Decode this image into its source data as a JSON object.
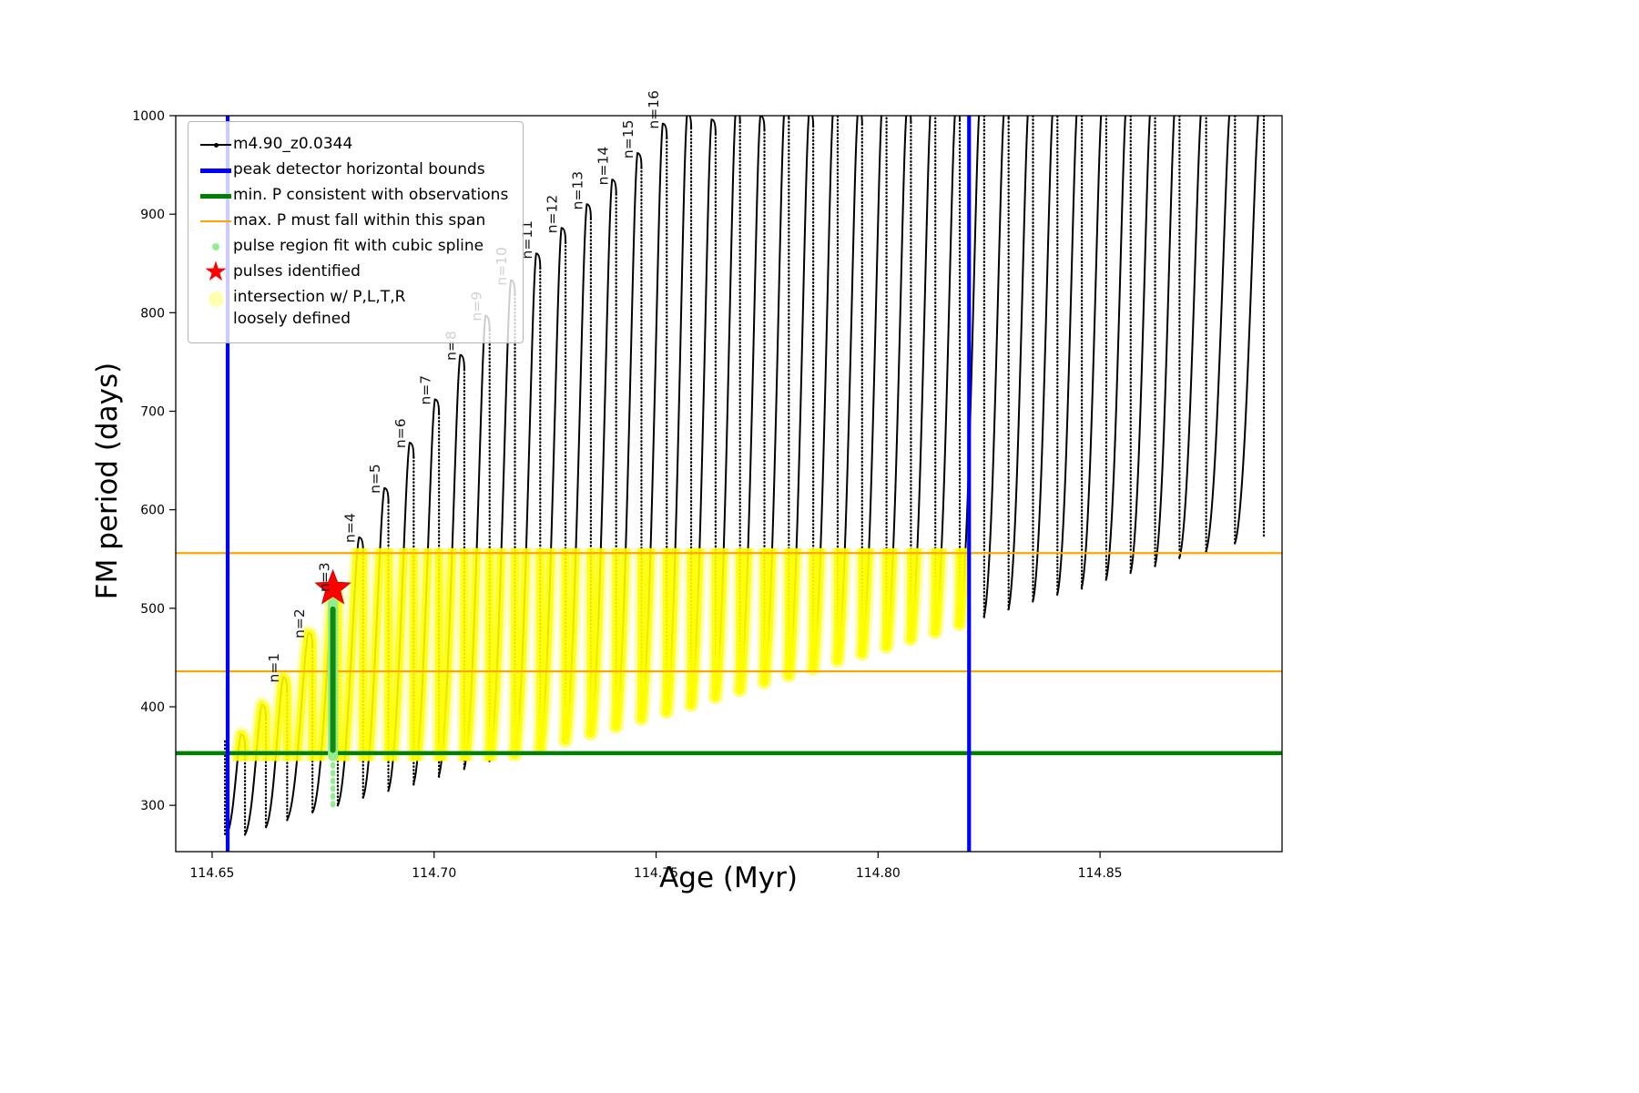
{
  "axes": {
    "xlabel": "Age (Myr)",
    "ylabel": "FM period (days)"
  },
  "icons": {
    "star_glyph": "★"
  },
  "legend": {
    "location": "upper left",
    "entries": [
      {
        "swatch": "line-dot",
        "color": "#000000",
        "label": "m4.90_z0.0344"
      },
      {
        "swatch": "thick-line",
        "color": "#0000ff",
        "label": "peak detector horizontal bounds"
      },
      {
        "swatch": "thick-line",
        "color": "#008000",
        "label": "min. P consistent with observations"
      },
      {
        "swatch": "thin-line",
        "color": "#ffa500",
        "label": "max. P must fall within this span"
      },
      {
        "swatch": "small-dot",
        "color": "#90ee90",
        "label": "pulse region fit with cubic spline"
      },
      {
        "swatch": "star",
        "color": "#ff0000",
        "label": "pulses identified"
      },
      {
        "swatch": "big-dot",
        "color": "#ffffb0",
        "label": "intersection w/ P,L,T,R\nloosely defined"
      }
    ]
  },
  "chart_data": {
    "type": "line",
    "title": "",
    "xlabel": "Age (Myr)",
    "ylabel": "FM period (days)",
    "xlim": [
      114.6418,
      114.891
    ],
    "ylim": [
      253,
      1000
    ],
    "xticks": [
      114.65,
      114.7,
      114.75,
      114.8,
      114.85
    ],
    "xtick_labels": [
      "114.65",
      "114.70",
      "114.75",
      "114.80",
      "114.85"
    ],
    "yticks": [
      300,
      400,
      500,
      600,
      700,
      800,
      900,
      1000
    ],
    "grid": false,
    "legend_location": "upper left",
    "series": [
      {
        "name": "m4.90_z0.0344",
        "color": "#000000",
        "marker": "dot"
      }
    ],
    "peak_detector_bounds_x": [
      114.6535,
      114.8205
    ],
    "min_P_line_y": 353,
    "max_P_span_y": [
      436,
      556
    ],
    "yellow_band": {
      "period_range": [
        345,
        561
      ],
      "age_range": [
        114.6535,
        114.8205
      ]
    },
    "spline_region": {
      "age": 114.6772,
      "sparse_range": [
        300,
        348
      ],
      "dense_range": [
        350,
        505
      ]
    },
    "pulse_identified": {
      "age": 114.6772,
      "period": 520
    },
    "initial_drop": {
      "age": 114.6529,
      "from": 365,
      "to": 270
    },
    "first_ascent_start_age": 114.6532,
    "pulses": [
      [
        114.6565,
        372
      ],
      [
        114.6612,
        402
      ],
      [
        114.666,
        430
      ],
      [
        114.6717,
        475
      ],
      [
        114.6774,
        522
      ],
      [
        114.6831,
        572
      ],
      [
        114.6888,
        622
      ],
      [
        114.6945,
        668
      ],
      [
        114.7002,
        712
      ],
      [
        114.7059,
        757
      ],
      [
        114.7116,
        797
      ],
      [
        114.7173,
        833
      ],
      [
        114.723,
        860
      ],
      [
        114.7287,
        886
      ],
      [
        114.7344,
        910
      ],
      [
        114.7401,
        935
      ],
      [
        114.7458,
        962
      ],
      [
        114.7515,
        992
      ],
      [
        114.757,
        1002
      ],
      [
        114.7625,
        996
      ],
      [
        114.768,
        1008
      ],
      [
        114.7735,
        1000
      ],
      [
        114.779,
        1012
      ],
      [
        114.7845,
        1004
      ],
      [
        114.79,
        1014
      ],
      [
        114.7955,
        1006
      ],
      [
        114.801,
        1016
      ],
      [
        114.8065,
        1008
      ],
      [
        114.812,
        1016
      ],
      [
        114.8175,
        1010
      ],
      [
        114.823,
        1018
      ],
      [
        114.8285,
        1012
      ],
      [
        114.834,
        1018
      ],
      [
        114.8395,
        1014
      ],
      [
        114.845,
        1018
      ],
      [
        114.8505,
        1015
      ],
      [
        114.856,
        1018
      ],
      [
        114.8615,
        1016
      ],
      [
        114.867,
        1018
      ],
      [
        114.873,
        1016
      ],
      [
        114.8795,
        1018
      ],
      [
        114.886,
        1018
      ]
    ],
    "troughs": [
      270,
      277,
      285,
      292,
      299,
      307,
      314,
      321,
      329,
      336,
      344,
      351,
      358,
      366,
      373,
      380,
      388,
      395,
      402,
      410,
      417,
      425,
      432,
      439,
      447,
      454,
      461,
      469,
      476,
      484,
      491,
      498,
      506,
      513,
      520,
      528,
      535,
      542,
      550,
      557,
      565,
      572
    ],
    "pulse_labels": [
      {
        "text": "n=1",
        "age": 114.666,
        "period": 430
      },
      {
        "text": "n=2",
        "age": 114.6717,
        "period": 475
      },
      {
        "text": "n=3",
        "age": 114.6774,
        "period": 522
      },
      {
        "text": "n=4",
        "age": 114.6831,
        "period": 572
      },
      {
        "text": "n=5",
        "age": 114.6888,
        "period": 622
      },
      {
        "text": "n=6",
        "age": 114.6945,
        "period": 668
      },
      {
        "text": "n=7",
        "age": 114.7002,
        "period": 712
      },
      {
        "text": "n=8",
        "age": 114.7059,
        "period": 757
      },
      {
        "text": "n=9",
        "age": 114.7116,
        "period": 797
      },
      {
        "text": "n=10",
        "age": 114.7173,
        "period": 833
      },
      {
        "text": "n=11",
        "age": 114.723,
        "period": 860
      },
      {
        "text": "n=12",
        "age": 114.7287,
        "period": 886
      },
      {
        "text": "n=13",
        "age": 114.7344,
        "period": 910
      },
      {
        "text": "n=14",
        "age": 114.7401,
        "period": 935
      },
      {
        "text": "n=15",
        "age": 114.7458,
        "period": 962
      },
      {
        "text": "n=16",
        "age": 114.7515,
        "period": 992
      }
    ],
    "colors": {
      "black": "#000000",
      "blue": "#0000ff",
      "green": "#008000",
      "orange": "#ffa500",
      "lightgreen": "#90ee90",
      "yellow": "#ffff00",
      "red": "#ff0000",
      "pale_yellow": "#ffffb0"
    }
  }
}
